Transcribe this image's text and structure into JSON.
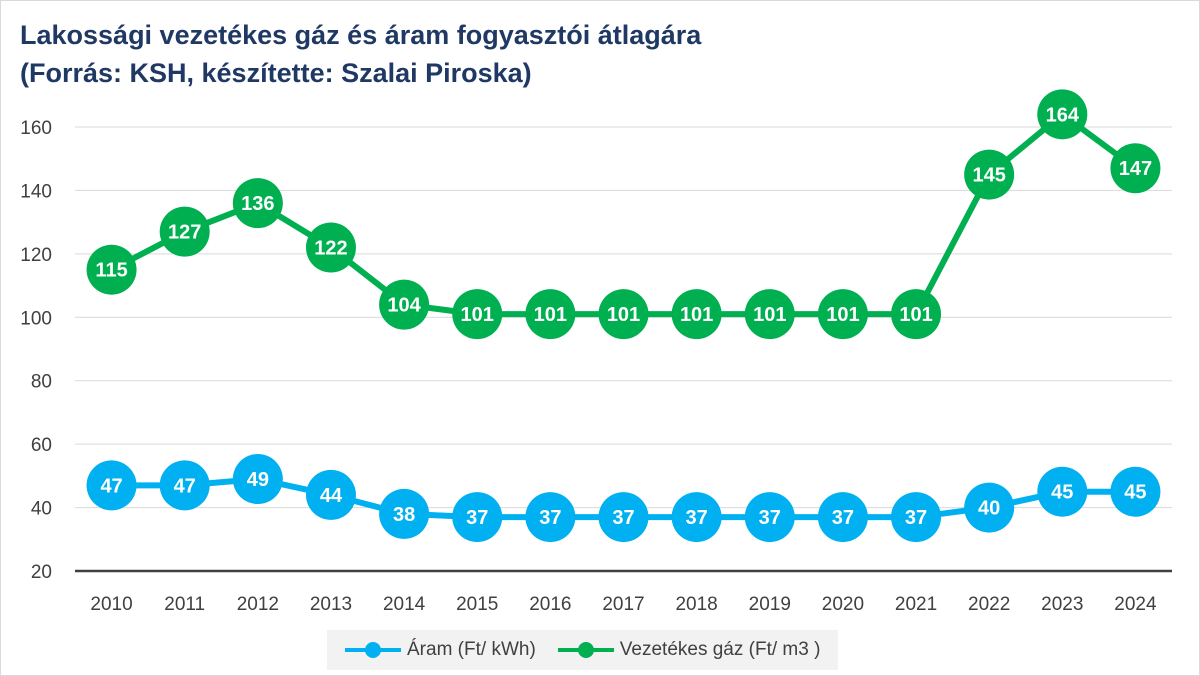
{
  "title": {
    "line1": "Lakossági vezetékes gáz és áram fogyasztói átlagára",
    "line2": "(Forrás: KSH, készítette: Szalai Piroska)"
  },
  "colors": {
    "aram": "#00b0f0",
    "gaz": "#00b050",
    "grid": "#d9d9d9",
    "axis": "#404040",
    "title": "#1f3864"
  },
  "legend": {
    "aram_label": "Áram (Ft/ kWh)",
    "gaz_label": "Vezetékes gáz (Ft/ m3 )"
  },
  "chart_data": {
    "type": "line",
    "categories": [
      "2010",
      "2011",
      "2012",
      "2013",
      "2014",
      "2015",
      "2016",
      "2017",
      "2018",
      "2019",
      "2020",
      "2021",
      "2022",
      "2023",
      "2024"
    ],
    "series": [
      {
        "name": "Áram (Ft/ kWh)",
        "color": "#00b0f0",
        "values": [
          47,
          47,
          49,
          44,
          38,
          37,
          37,
          37,
          37,
          37,
          37,
          37,
          40,
          45,
          45
        ]
      },
      {
        "name": "Vezetékes gáz (Ft/ m3 )",
        "color": "#00b050",
        "values": [
          115,
          127,
          136,
          122,
          104,
          101,
          101,
          101,
          101,
          101,
          101,
          101,
          145,
          164,
          147
        ]
      }
    ],
    "ylim": [
      20,
      160
    ],
    "yticks": [
      20,
      40,
      60,
      80,
      100,
      120,
      140,
      160
    ],
    "xlabel": "",
    "ylabel": "",
    "grid": true,
    "legend_position": "bottom",
    "data_labels": true
  }
}
